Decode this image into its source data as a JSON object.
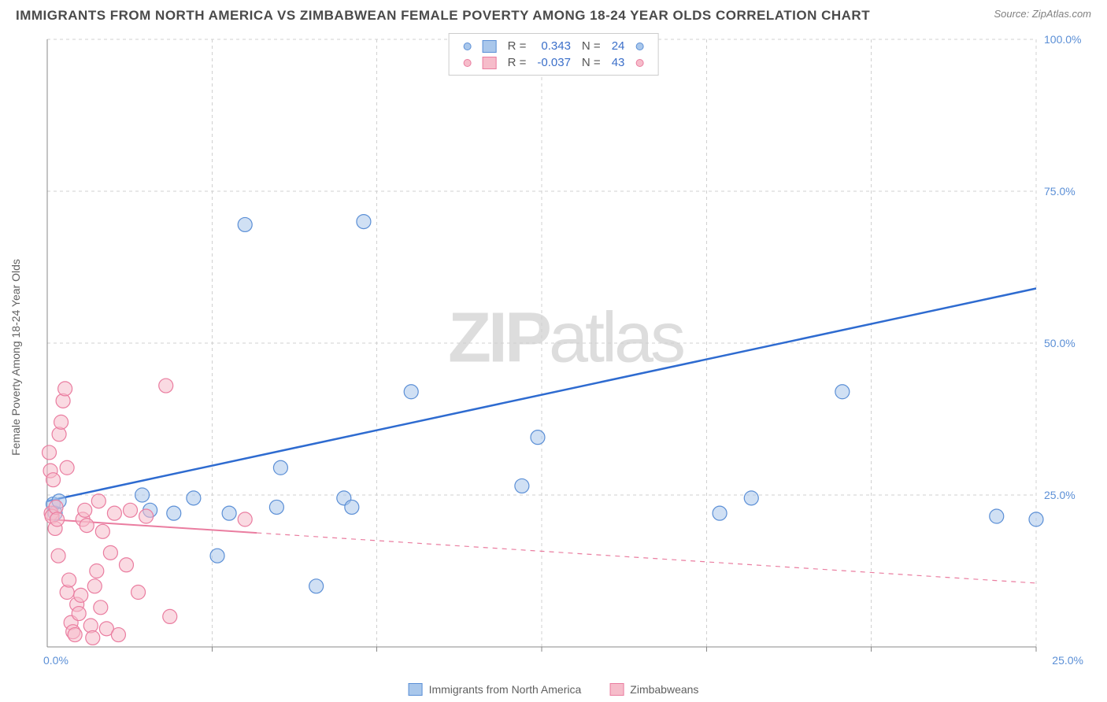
{
  "title": "IMMIGRANTS FROM NORTH AMERICA VS ZIMBABWEAN FEMALE POVERTY AMONG 18-24 YEAR OLDS CORRELATION CHART",
  "source": "Source: ZipAtlas.com",
  "watermark": {
    "bold": "ZIP",
    "light": "atlas"
  },
  "y_axis_label": "Female Poverty Among 18-24 Year Olds",
  "chart": {
    "type": "scatter",
    "background": "#ffffff",
    "grid_color": "#d0d0d0",
    "axis_color": "#888888",
    "xlim": [
      0,
      25
    ],
    "ylim": [
      0,
      100
    ],
    "xticks": [
      0,
      25
    ],
    "xtick_labels": [
      "0.0%",
      "25.0%"
    ],
    "yticks": [
      25,
      50,
      75,
      100
    ],
    "ytick_labels": [
      "25.0%",
      "50.0%",
      "75.0%",
      "100.0%"
    ],
    "x_grid_positions": [
      4.17,
      8.33,
      12.5,
      16.67,
      20.83,
      25
    ],
    "tick_label_color": "#5b8fd6",
    "tick_label_fontsize": 14,
    "marker_radius": 9,
    "marker_opacity": 0.55,
    "series": [
      {
        "name": "Immigrants from North America",
        "color_fill": "#a9c7eb",
        "color_stroke": "#5b8fd6",
        "R": "0.343",
        "N": "24",
        "points": [
          [
            0.15,
            23.5
          ],
          [
            0.2,
            22.0
          ],
          [
            0.3,
            24.0
          ],
          [
            2.6,
            22.5
          ],
          [
            2.4,
            25.0
          ],
          [
            3.2,
            22.0
          ],
          [
            3.7,
            24.5
          ],
          [
            4.3,
            15.0
          ],
          [
            4.6,
            22.0
          ],
          [
            5.0,
            69.5
          ],
          [
            5.8,
            23.0
          ],
          [
            5.9,
            29.5
          ],
          [
            6.8,
            10.0
          ],
          [
            7.5,
            24.5
          ],
          [
            7.7,
            23.0
          ],
          [
            8.0,
            70.0
          ],
          [
            9.2,
            42.0
          ],
          [
            12.0,
            26.5
          ],
          [
            12.4,
            34.5
          ],
          [
            17.0,
            22.0
          ],
          [
            17.8,
            24.5
          ],
          [
            20.1,
            42.0
          ],
          [
            24.0,
            21.5
          ],
          [
            25.0,
            21.0
          ]
        ],
        "trend": {
          "x1": 0,
          "y1": 24.0,
          "x2": 25,
          "y2": 59.0,
          "color": "#2e6bd0",
          "width": 2.5,
          "solid_extent": 25
        }
      },
      {
        "name": "Zimbabweans",
        "color_fill": "#f6bcca",
        "color_stroke": "#ea7da0",
        "R": "-0.037",
        "N": "43",
        "points": [
          [
            0.05,
            32.0
          ],
          [
            0.08,
            29.0
          ],
          [
            0.1,
            22.0
          ],
          [
            0.12,
            21.5
          ],
          [
            0.15,
            27.5
          ],
          [
            0.2,
            19.5
          ],
          [
            0.22,
            23.0
          ],
          [
            0.25,
            21.0
          ],
          [
            0.28,
            15.0
          ],
          [
            0.3,
            35.0
          ],
          [
            0.35,
            37.0
          ],
          [
            0.4,
            40.5
          ],
          [
            0.45,
            42.5
          ],
          [
            0.5,
            29.5
          ],
          [
            0.5,
            9.0
          ],
          [
            0.55,
            11.0
          ],
          [
            0.6,
            4.0
          ],
          [
            0.65,
            2.5
          ],
          [
            0.7,
            2.0
          ],
          [
            0.75,
            7.0
          ],
          [
            0.8,
            5.5
          ],
          [
            0.85,
            8.5
          ],
          [
            0.9,
            21.0
          ],
          [
            0.95,
            22.5
          ],
          [
            1.0,
            20.0
          ],
          [
            1.1,
            3.5
          ],
          [
            1.15,
            1.5
          ],
          [
            1.2,
            10.0
          ],
          [
            1.25,
            12.5
          ],
          [
            1.3,
            24.0
          ],
          [
            1.35,
            6.5
          ],
          [
            1.4,
            19.0
          ],
          [
            1.5,
            3.0
          ],
          [
            1.6,
            15.5
          ],
          [
            1.7,
            22.0
          ],
          [
            1.8,
            2.0
          ],
          [
            2.0,
            13.5
          ],
          [
            2.1,
            22.5
          ],
          [
            2.3,
            9.0
          ],
          [
            2.5,
            21.5
          ],
          [
            3.0,
            43.0
          ],
          [
            3.1,
            5.0
          ],
          [
            5.0,
            21.0
          ]
        ],
        "trend": {
          "x1": 0,
          "y1": 21.0,
          "x2": 25,
          "y2": 10.5,
          "color": "#ea7da0",
          "width": 2,
          "solid_extent": 5.3
        }
      }
    ]
  },
  "legend_top": {
    "rows": [
      {
        "fill": "#a9c7eb",
        "stroke": "#5b8fd6",
        "R_label": "R =",
        "R": "0.343",
        "N_label": "N =",
        "N": "24"
      },
      {
        "fill": "#f6bcca",
        "stroke": "#ea7da0",
        "R_label": "R =",
        "R": "-0.037",
        "N_label": "N =",
        "N": "43"
      }
    ]
  },
  "legend_bottom": [
    {
      "fill": "#a9c7eb",
      "stroke": "#5b8fd6",
      "label": "Immigrants from North America"
    },
    {
      "fill": "#f6bcca",
      "stroke": "#ea7da0",
      "label": "Zimbabweans"
    }
  ]
}
